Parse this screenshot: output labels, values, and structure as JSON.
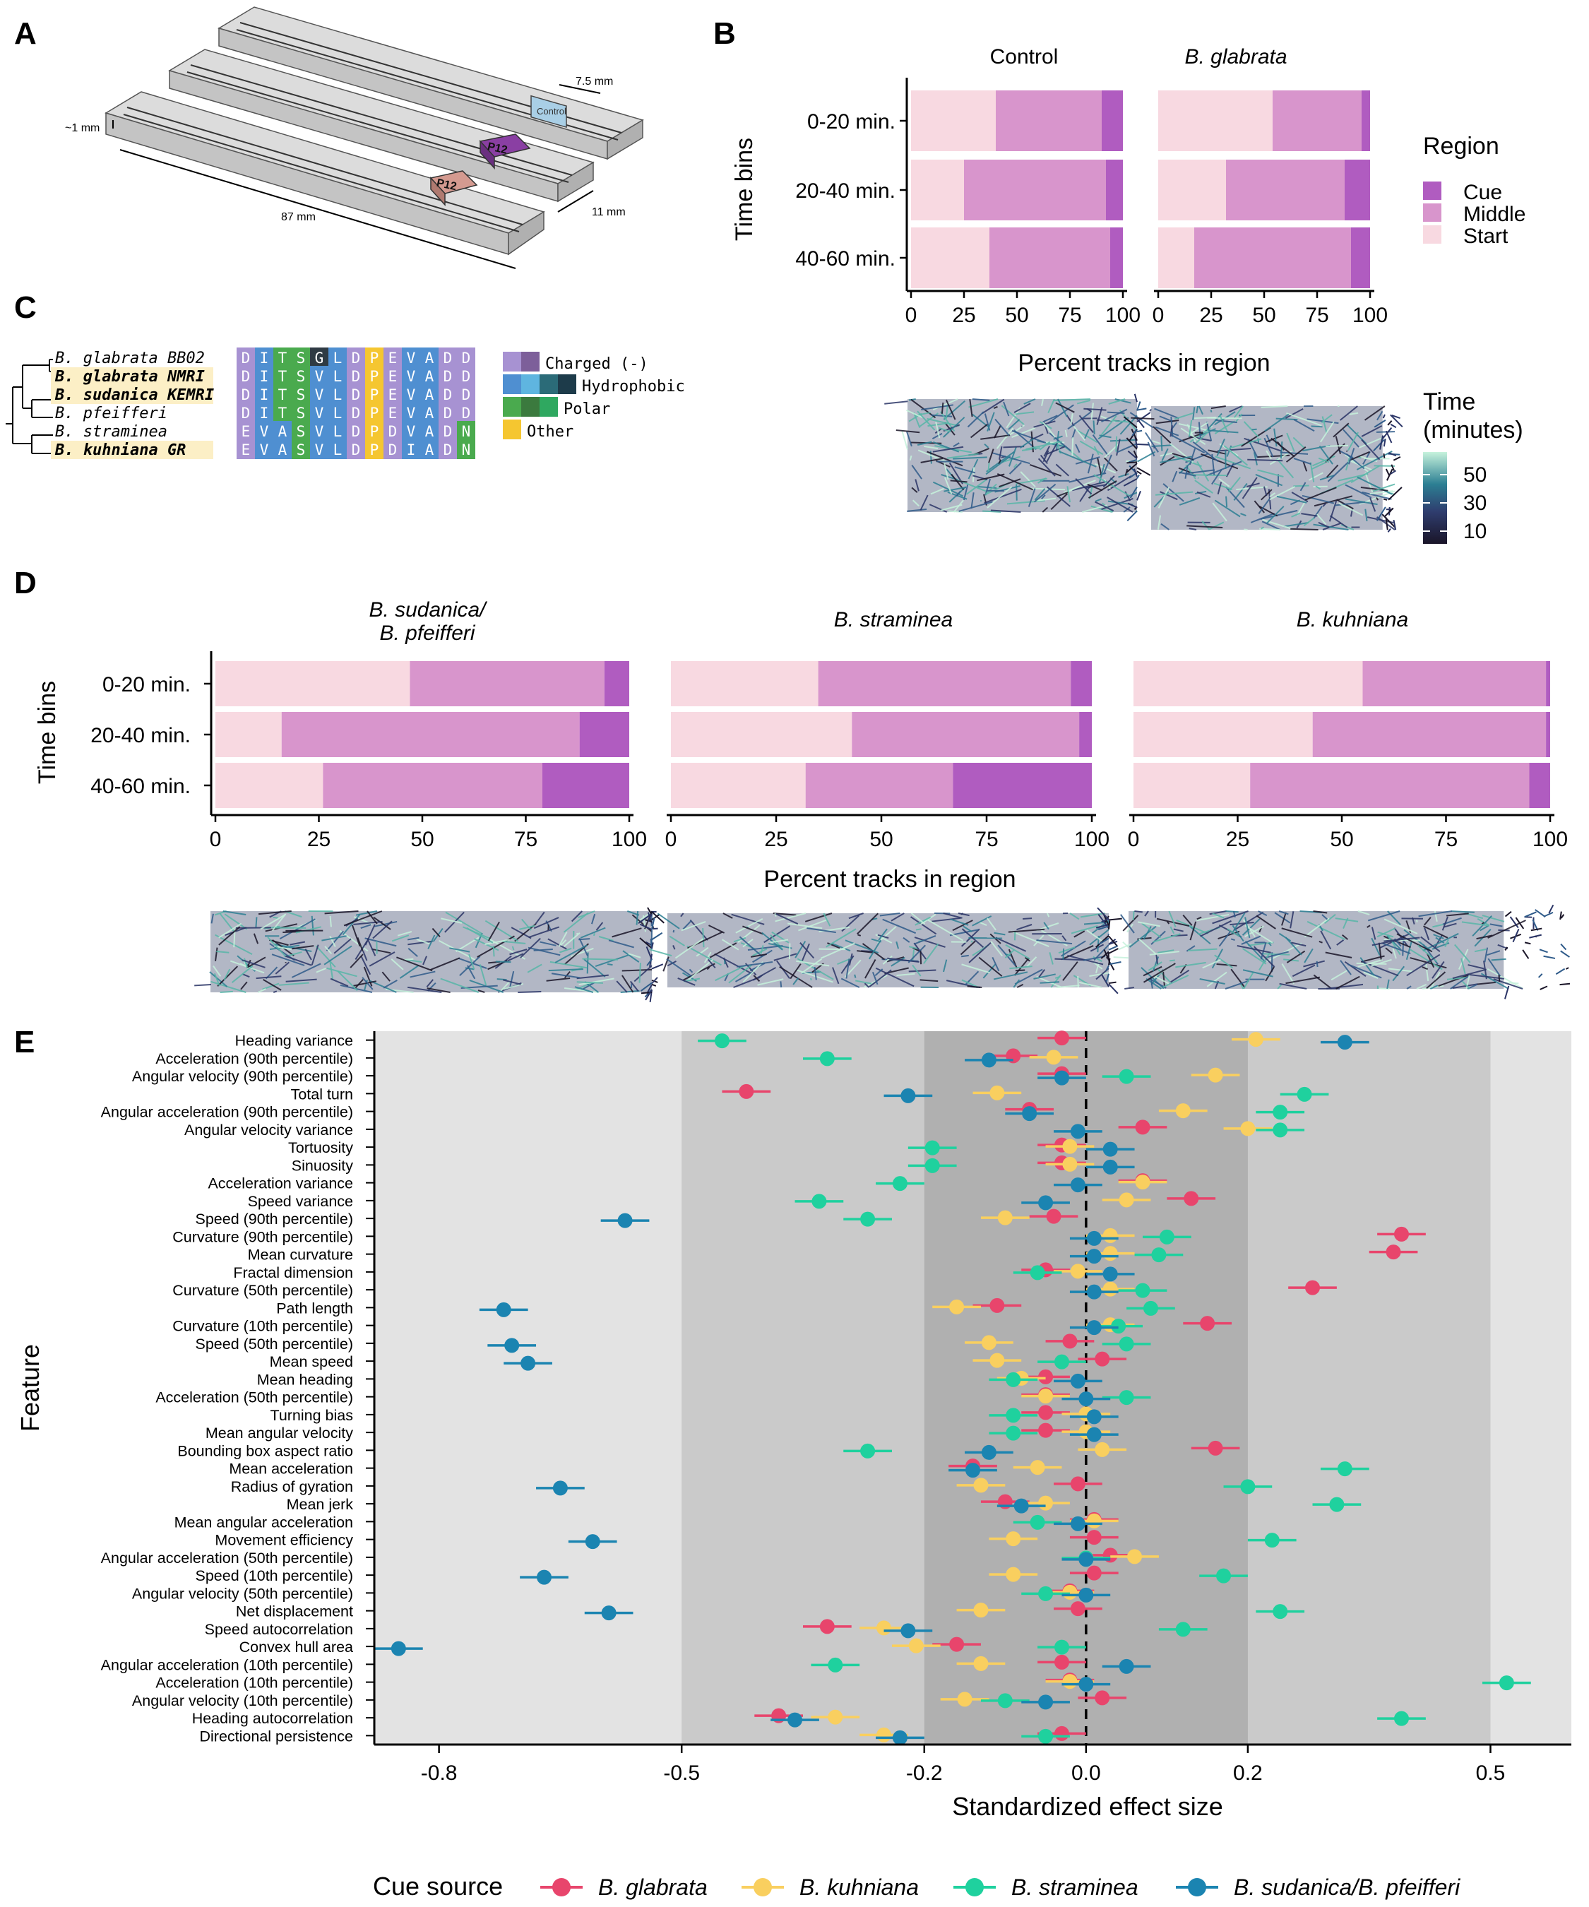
{
  "panels": {
    "A": {
      "letter": "A",
      "dims": [
        "7.5 mm",
        "~1 mm",
        "11 mm",
        "87 mm"
      ],
      "chip_labels": [
        "Control",
        "P12",
        "P12"
      ]
    },
    "B": {
      "letter": "B",
      "facets": [
        "Control",
        "B. glabrata"
      ],
      "legend_title": "Region",
      "legend_items": [
        "Cue",
        "Middle",
        "Start"
      ],
      "time_legend_title": [
        "Time",
        "(minutes)"
      ],
      "time_legend_ticks": [
        "50",
        "30",
        "10"
      ]
    },
    "C": {
      "letter": "C",
      "species": [
        "B. glabrata BB02",
        "B. glabrata NMRI",
        "B. sudanica KEMRI",
        "B. pfeifferi",
        "B. straminea",
        "B. kuhniana GR"
      ],
      "sequences": [
        "DITSGLDPEVADD",
        "DITSVLDPEVADD",
        "DITSVLDPEVADD",
        "DITSVLDPEVADD",
        "EVASVLDPDVADN",
        "EVASVLDPDIADN"
      ],
      "insert_glyph": "G/V",
      "legend": [
        "Charged (-)",
        "Hydrophobic",
        "Polar",
        "Other"
      ]
    },
    "D": {
      "letter": "D",
      "facets": [
        "B. sudanica/",
        "B. pfeifferi",
        "B. straminea",
        "B. kuhniana"
      ]
    },
    "E": {
      "letter": "E"
    }
  },
  "colors": {
    "cue": "#b05cc0",
    "middle": "#d895cc",
    "start": "#f8d9e1",
    "charged": "#a792d2",
    "hydrophobic": "#4f8fd1",
    "polar": "#4aaa4e",
    "other": "#f5c630",
    "glabrata": "#e8456c",
    "kuhniana": "#f9cf5f",
    "straminea": "#1fd19e",
    "sudanica": "#1b84b1",
    "band_outer": "#e3e3e3",
    "band_mid": "#cacaca",
    "band_inner": "#b0b0b0"
  },
  "chart_data": [
    {
      "id": "B",
      "type": "bar",
      "stacked": true,
      "orientation": "horizontal",
      "facets": [
        "Control",
        "B. glabrata"
      ],
      "categories": [
        "0-20 min.",
        "20-40 min.",
        "40-60 min."
      ],
      "series_order": [
        "Start",
        "Middle",
        "Cue"
      ],
      "values": {
        "Control": {
          "Start": [
            40,
            25,
            37
          ],
          "Middle": [
            50,
            67,
            57
          ],
          "Cue": [
            10,
            8,
            6
          ]
        },
        "B. glabrata": {
          "Start": [
            54,
            32,
            17
          ],
          "Middle": [
            42,
            56,
            74
          ],
          "Cue": [
            4,
            12,
            9
          ]
        }
      },
      "xlabel": "Percent tracks in region",
      "ylabel": "Time bins",
      "xticks": [
        0,
        25,
        50,
        75,
        100
      ],
      "xlim": [
        0,
        100
      ]
    },
    {
      "id": "D",
      "type": "bar",
      "stacked": true,
      "orientation": "horizontal",
      "facets": [
        "B. sudanica/B. pfeifferi",
        "B. straminea",
        "B. kuhniana"
      ],
      "categories": [
        "0-20 min.",
        "20-40 min.",
        "40-60 min."
      ],
      "series_order": [
        "Start",
        "Middle",
        "Cue"
      ],
      "values": {
        "B. sudanica/B. pfeifferi": {
          "Start": [
            47,
            16,
            26
          ],
          "Middle": [
            47,
            72,
            53
          ],
          "Cue": [
            6,
            12,
            21
          ]
        },
        "B. straminea": {
          "Start": [
            35,
            43,
            32
          ],
          "Middle": [
            60,
            54,
            35
          ],
          "Cue": [
            5,
            3,
            33
          ]
        },
        "B. kuhniana": {
          "Start": [
            55,
            43,
            28
          ],
          "Middle": [
            44,
            56,
            67
          ],
          "Cue": [
            1,
            1,
            5
          ]
        }
      },
      "xlabel": "Percent tracks in region",
      "ylabel": "Time bins",
      "xticks": [
        0,
        25,
        50,
        75,
        100
      ],
      "xlim": [
        0,
        100
      ]
    },
    {
      "id": "E",
      "type": "scatter",
      "xlabel": "Standardized effect size",
      "ylabel": "Feature",
      "xlim": [
        -0.88,
        0.6
      ],
      "xticks": [
        -0.8,
        -0.5,
        -0.2,
        0.0,
        0.2,
        0.5
      ],
      "xtick_labels": [
        "-0.8",
        "-0.5",
        "-0.2",
        "0.0",
        "0.2",
        "0.5"
      ],
      "legend_title": "Cue source",
      "legend_placement": "bottom",
      "series": [
        {
          "name": "B. glabrata",
          "color": "#e8456c"
        },
        {
          "name": "B. kuhniana",
          "color": "#f9cf5f"
        },
        {
          "name": "B. straminea",
          "color": "#1fd19e"
        },
        {
          "name": "B. sudanica/B. pfeifferi",
          "color": "#1b84b1"
        }
      ],
      "features": [
        "Heading variance",
        "Acceleration (90th percentile)",
        "Angular velocity (90th percentile)",
        "Total turn",
        "Angular acceleration (90th percentile)",
        "Angular velocity variance",
        "Tortuosity",
        "Sinuosity",
        "Acceleration variance",
        "Speed variance",
        "Speed (90th percentile)",
        "Curvature (90th percentile)",
        "Mean curvature",
        "Fractal dimension",
        "Curvature (50th percentile)",
        "Path length",
        "Curvature (10th percentile)",
        "Speed (50th percentile)",
        "Mean speed",
        "Mean heading",
        "Acceleration (50th percentile)",
        "Turning bias",
        "Mean angular velocity",
        "Bounding box aspect ratio",
        "Mean acceleration",
        "Radius of gyration",
        "Mean jerk",
        "Mean angular acceleration",
        "Movement efficiency",
        "Angular acceleration (50th percentile)",
        "Speed (10th percentile)",
        "Angular velocity (50th percentile)",
        "Net displacement",
        "Speed autocorrelation",
        "Convex hull area",
        "Angular acceleration (10th percentile)",
        "Acceleration (10th percentile)",
        "Angular velocity (10th percentile)",
        "Heading autocorrelation",
        "Directional persistence"
      ],
      "values": {
        "B. glabrata": [
          -0.03,
          -0.09,
          -0.03,
          -0.42,
          -0.07,
          0.07,
          -0.03,
          -0.03,
          0.07,
          0.13,
          -0.04,
          0.39,
          0.38,
          -0.05,
          0.28,
          -0.11,
          0.15,
          -0.02,
          0.02,
          -0.05,
          -0.05,
          -0.05,
          -0.05,
          0.16,
          -0.14,
          -0.01,
          -0.1,
          0.01,
          0.01,
          0.03,
          0.01,
          -0.02,
          -0.01,
          -0.32,
          -0.16,
          -0.03,
          -0.02,
          0.02,
          -0.38,
          -0.03
        ],
        "B. kuhniana": [
          0.21,
          -0.04,
          0.16,
          -0.11,
          0.12,
          0.2,
          -0.02,
          -0.02,
          0.07,
          0.05,
          -0.1,
          0.03,
          0.03,
          -0.01,
          0.03,
          -0.16,
          0.03,
          -0.12,
          -0.11,
          -0.08,
          -0.05,
          0.0,
          0.0,
          0.02,
          -0.06,
          -0.13,
          -0.05,
          0.01,
          -0.09,
          0.06,
          -0.09,
          -0.02,
          -0.13,
          -0.25,
          -0.21,
          -0.13,
          -0.02,
          -0.15,
          -0.31,
          -0.25
        ],
        "B. straminea": [
          -0.45,
          -0.32,
          0.05,
          0.27,
          0.24,
          0.24,
          -0.19,
          -0.19,
          -0.23,
          -0.33,
          -0.27,
          0.1,
          0.09,
          -0.06,
          0.07,
          0.08,
          0.04,
          0.05,
          -0.03,
          -0.09,
          0.05,
          -0.09,
          -0.09,
          -0.27,
          0.32,
          0.2,
          0.31,
          -0.06,
          0.23,
          0.0,
          0.17,
          -0.05,
          0.24,
          0.12,
          -0.03,
          -0.31,
          0.52,
          -0.1,
          0.39,
          -0.05
        ],
        "B. sudanica/B. pfeifferi": [
          0.32,
          -0.12,
          -0.03,
          -0.22,
          -0.07,
          -0.01,
          0.03,
          0.03,
          -0.01,
          -0.05,
          -0.57,
          0.01,
          0.01,
          0.03,
          0.01,
          -0.72,
          0.01,
          -0.71,
          -0.69,
          -0.01,
          0.0,
          0.01,
          0.01,
          -0.12,
          -0.14,
          -0.65,
          -0.08,
          -0.01,
          -0.61,
          0.0,
          -0.67,
          0.0,
          -0.59,
          -0.22,
          -0.85,
          0.05,
          0.0,
          -0.05,
          -0.36,
          -0.23
        ]
      }
    }
  ]
}
